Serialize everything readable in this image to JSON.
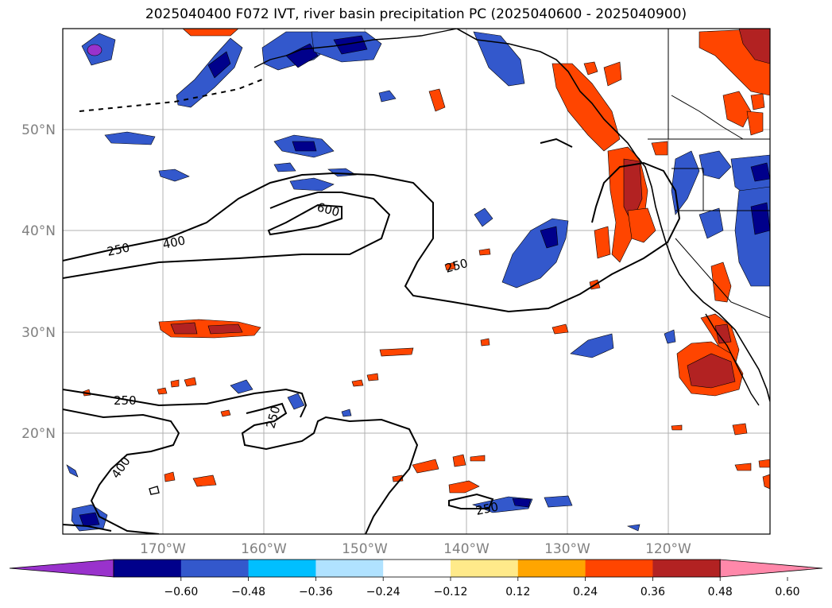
{
  "title": "2025040400 F072 IVT, river basin precipitation PC (2025040600 - 2025040900)",
  "map": {
    "lat_labels": [
      "50°N",
      "40°N",
      "30°N",
      "20°N"
    ],
    "lon_labels": [
      "170°W",
      "160°W",
      "150°W",
      "140°W",
      "130°W",
      "120°W"
    ],
    "contour_labels": [
      "250",
      "400",
      "600",
      "250",
      "250",
      "400",
      "250",
      "250"
    ],
    "colors": {
      "land": "#000000",
      "contour": "#000000",
      "grid": "#b0b0b0"
    }
  },
  "colorbar": {
    "tick_labels": [
      "−0.60",
      "−0.48",
      "−0.36",
      "−0.24",
      "−0.12",
      "0.12",
      "0.24",
      "0.36",
      "0.48",
      "0.60"
    ],
    "colors": [
      "#9932cc",
      "#00008b",
      "#3358cc",
      "#00bfff",
      "#b0e2ff",
      "#ffffff",
      "#ffea8a",
      "#ffa500",
      "#ff4500",
      "#b22222",
      "#ff88aa"
    ]
  }
}
